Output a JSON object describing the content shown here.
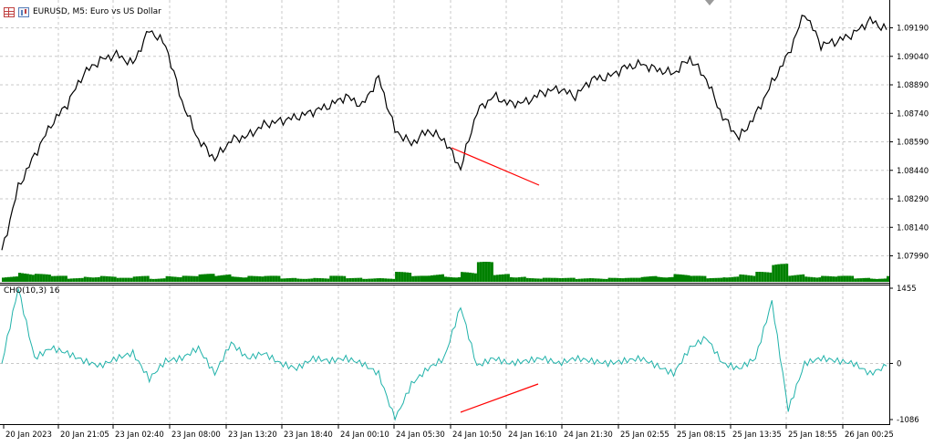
{
  "chart": {
    "symbol_title": "EURUSD, M5:  Euro vs US Dollar",
    "indicator_title": "CHO(10,3) 16",
    "price_scale": [
      "1.09190",
      "1.09040",
      "1.08890",
      "1.08740",
      "1.08590",
      "1.08440",
      "1.08290",
      "1.08140",
      "1.07990"
    ],
    "indicator_scale": [
      "1455",
      "0",
      "-1086"
    ],
    "time_scale": [
      "20 Jan 2023",
      "20 Jan 21:05",
      "23 Jan 02:40",
      "23 Jan 08:00",
      "23 Jan 13:20",
      "23 Jan 18:40",
      "24 Jan 00:10",
      "24 Jan 05:30",
      "24 Jan 10:50",
      "24 Jan 16:10",
      "24 Jan 21:30",
      "25 Jan 02:55",
      "25 Jan 08:15",
      "25 Jan 13:35",
      "25 Jan 18:55",
      "26 Jan 00:25"
    ],
    "colors": {
      "price_line": "#000000",
      "volume": "#008000",
      "indicator_line": "#20b2aa",
      "divergence_line": "#ff0000",
      "grid": "#c8c8c8",
      "background": "#ffffff"
    }
  },
  "chart_data": [
    {
      "type": "line",
      "series": [
        {
          "values": [
            1.0801,
            1.0835,
            1.0852,
            1.0868,
            1.0879,
            1.0895,
            1.0902,
            1.0905,
            1.09,
            1.0918,
            1.091,
            1.088,
            1.086,
            1.085,
            1.086,
            1.0862,
            1.0868,
            1.087,
            1.0872,
            1.0875,
            1.0878,
            1.0883,
            1.0878,
            1.0893,
            1.0865,
            1.0858,
            1.0865,
            1.086,
            1.0845,
            1.0875,
            1.0883,
            1.0879,
            1.088,
            1.0885,
            1.0887,
            1.0883,
            1.0892,
            1.0893,
            1.0898,
            1.09,
            1.0897,
            1.0895,
            1.0903,
            1.0892,
            1.0872,
            1.0861,
            1.0873,
            1.089,
            1.0905,
            1.0927,
            1.091,
            1.0912,
            1.0916,
            1.0923,
            1.0918
          ]
        }
      ],
      "ylim": [
        1.079,
        1.093
      ],
      "y_tick_labels": [
        "1.09190",
        "1.09040",
        "1.08890",
        "1.08740",
        "1.08590",
        "1.08440",
        "1.08290",
        "1.08140",
        "1.07990"
      ],
      "x_tick_labels": [
        "20 Jan 2023",
        "20 Jan 21:05",
        "23 Jan 02:40",
        "23 Jan 08:00",
        "23 Jan 13:20",
        "23 Jan 18:40",
        "24 Jan 00:10",
        "24 Jan 05:30",
        "24 Jan 10:50",
        "24 Jan 16:10",
        "24 Jan 21:30",
        "25 Jan 02:55",
        "25 Jan 08:15",
        "25 Jan 13:35",
        "25 Jan 18:55",
        "26 Jan 00:25"
      ],
      "grid": true
    },
    {
      "type": "bar",
      "values": [
        0.3,
        0.5,
        0.4,
        0.3,
        0.2,
        0.3,
        0.3,
        0.2,
        0.3,
        0.2,
        0.3,
        0.3,
        0.4,
        0.4,
        0.3,
        0.3,
        0.3,
        0.2,
        0.2,
        0.2,
        0.3,
        0.2,
        0.2,
        0.2,
        0.5,
        0.3,
        0.4,
        0.3,
        0.5,
        1.0,
        0.4,
        0.3,
        0.2,
        0.2,
        0.2,
        0.2,
        0.2,
        0.2,
        0.2,
        0.3,
        0.3,
        0.4,
        0.3,
        0.2,
        0.3,
        0.4,
        0.5,
        0.9,
        0.4,
        0.3,
        0.3,
        0.3,
        0.2,
        0.2,
        0.3
      ]
    },
    {
      "type": "line",
      "series": [
        {
          "values": [
            0,
            1455,
            100,
            300,
            200,
            50,
            -50,
            100,
            200,
            -300,
            50,
            100,
            300,
            -200,
            400,
            100,
            200,
            0,
            -100,
            100,
            50,
            100,
            0,
            -200,
            -1086,
            -400,
            -100,
            100,
            1100,
            -50,
            100,
            0,
            50,
            100,
            0,
            100,
            50,
            0,
            50,
            100,
            -50,
            -200,
            300,
            500,
            0,
            -100,
            100,
            1200,
            -900,
            0,
            100,
            50,
            0,
            -200,
            -50
          ]
        }
      ],
      "ylim": [
        -1086,
        1455
      ],
      "y_tick_labels": [
        "1455",
        "0",
        "-1086"
      ],
      "grid": true
    }
  ]
}
